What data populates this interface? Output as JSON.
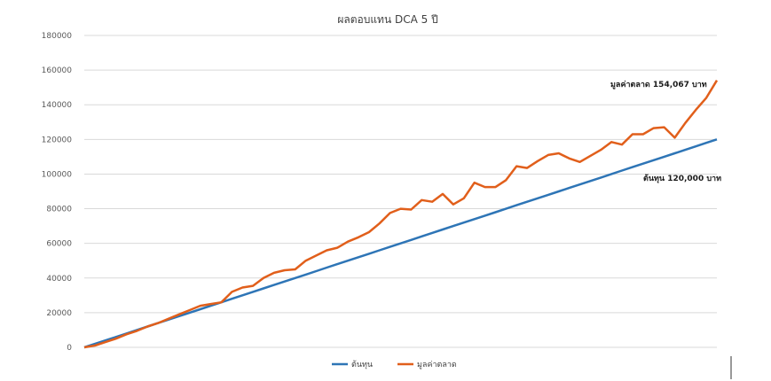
{
  "chart_data": {
    "type": "line",
    "title": "ผลตอบแทน DCA 5 ปี",
    "xlabel": "",
    "ylabel": "",
    "ylim": [
      0,
      180000
    ],
    "yticks": [
      "0",
      "20000",
      "40000",
      "60000",
      "80000",
      "100000",
      "120000",
      "140000",
      "160000",
      "180000"
    ],
    "grid": true,
    "legend_position": "bottom",
    "x": [
      1,
      2,
      3,
      4,
      5,
      6,
      7,
      8,
      9,
      10,
      11,
      12,
      13,
      14,
      15,
      16,
      17,
      18,
      19,
      20,
      21,
      22,
      23,
      24,
      25,
      26,
      27,
      28,
      29,
      30,
      31,
      32,
      33,
      34,
      35,
      36,
      37,
      38,
      39,
      40,
      41,
      42,
      43,
      44,
      45,
      46,
      47,
      48,
      49,
      50,
      51,
      52,
      53,
      54,
      55,
      56,
      57,
      58,
      59,
      60
    ],
    "series": [
      {
        "name": "ต้นทุน",
        "color": "#2e75b6",
        "values": [
          2000,
          4000,
          6000,
          8000,
          10000,
          12000,
          14000,
          16000,
          18000,
          20000,
          22000,
          24000,
          26000,
          28000,
          30000,
          32000,
          34000,
          36000,
          38000,
          40000,
          42000,
          44000,
          46000,
          48000,
          50000,
          52000,
          54000,
          56000,
          58000,
          60000,
          62000,
          64000,
          66000,
          68000,
          70000,
          72000,
          74000,
          76000,
          78000,
          80000,
          82000,
          84000,
          86000,
          88000,
          90000,
          92000,
          94000,
          96000,
          98000,
          100000,
          102000,
          104000,
          106000,
          108000,
          110000,
          112000,
          114000,
          116000,
          118000,
          120000
        ]
      },
      {
        "name": "มูลค่าตลาด",
        "color": "#e15f1b",
        "values": [
          1000,
          3000,
          5000,
          7500,
          9500,
          12000,
          14000,
          16500,
          19000,
          21500,
          24000,
          25000,
          26000,
          32000,
          34500,
          35500,
          40000,
          43000,
          44500,
          45000,
          50000,
          53000,
          56000,
          57500,
          61000,
          63500,
          66500,
          71500,
          77500,
          80000,
          79500,
          85000,
          84000,
          88500,
          82500,
          86000,
          95000,
          92500,
          92500,
          96500,
          104500,
          103500,
          107500,
          111000,
          112000,
          109000,
          107000,
          110500,
          114000,
          118500,
          117000,
          123000,
          123000,
          126500,
          127000,
          121000,
          129500,
          137000,
          144000,
          154067
        ]
      }
    ],
    "annotations": [
      {
        "text": "มูลค่าตลาด 154,067 บาท",
        "series": 1
      },
      {
        "text": "ต้นทุน 120,000 บาท",
        "series": 0
      }
    ]
  }
}
